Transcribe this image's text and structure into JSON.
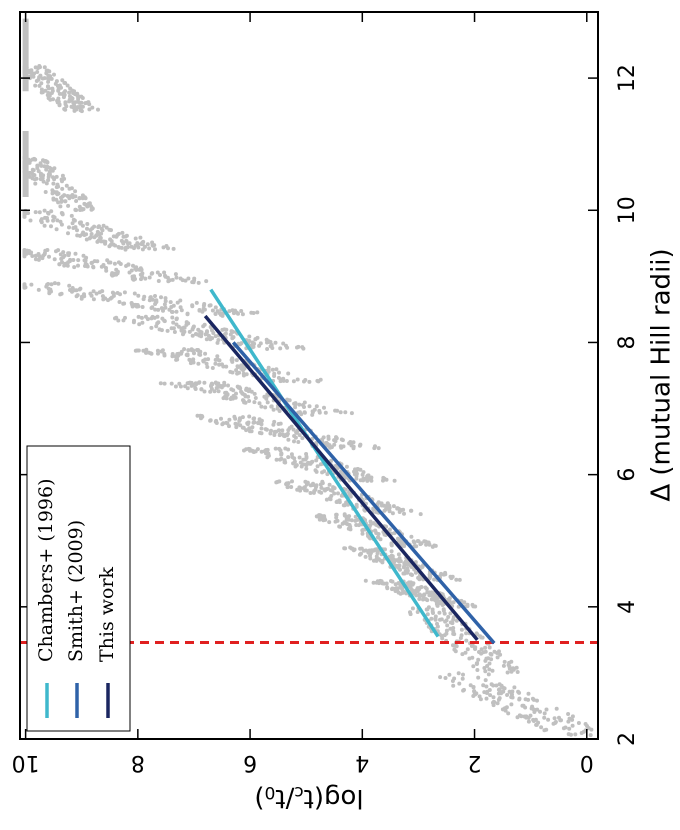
{
  "chart_data": {
    "type": "scatter",
    "orientation": "rotated-90-clockwise",
    "xlabel": "Δ (mutual Hill radii)",
    "ylabel_parts": {
      "prefix": "log(t",
      "sub1": "c",
      "mid": "/t",
      "sub2": "0",
      "suffix": ")"
    },
    "xlim": [
      2,
      13
    ],
    "ylim": [
      -0.2,
      10.1
    ],
    "xticks": [
      2,
      4,
      6,
      8,
      10,
      12
    ],
    "xtick_labels": [
      "2",
      "4",
      "6",
      "8",
      "10",
      "12"
    ],
    "yticks": [
      0,
      2,
      4,
      6,
      8,
      10
    ],
    "ytick_labels": [
      "0",
      "2",
      "4",
      "6",
      "8",
      "10"
    ],
    "point_color": "#c0c0c0",
    "scatter_segments": [
      {
        "x0": 2.05,
        "x1": 3.0,
        "y0": 0.1,
        "y1": 2.3
      },
      {
        "x0": 3.0,
        "x1": 4.0,
        "y0": 1.5,
        "y1": 2.9
      },
      {
        "x0": 4.0,
        "x1": 4.4,
        "y0": 2.3,
        "y1": 3.6
      },
      {
        "x0": 4.4,
        "x1": 4.9,
        "y0": 2.6,
        "y1": 4.0
      },
      {
        "x0": 4.9,
        "x1": 5.4,
        "y0": 3.0,
        "y1": 4.6
      },
      {
        "x0": 5.4,
        "x1": 5.9,
        "y0": 3.4,
        "y1": 5.2
      },
      {
        "x0": 5.9,
        "x1": 6.4,
        "y0": 3.8,
        "y1": 5.8
      },
      {
        "x0": 6.4,
        "x1": 6.9,
        "y0": 4.2,
        "y1": 6.6
      },
      {
        "x0": 6.9,
        "x1": 7.4,
        "y0": 4.6,
        "y1": 7.1
      },
      {
        "x0": 7.4,
        "x1": 7.9,
        "y0": 5.0,
        "y1": 7.6
      },
      {
        "x0": 7.9,
        "x1": 8.4,
        "y0": 5.5,
        "y1": 8.1
      },
      {
        "x0": 8.4,
        "x1": 8.9,
        "y0": 6.2,
        "y1": 10.0
      },
      {
        "x0": 8.9,
        "x1": 9.4,
        "y0": 7.2,
        "y1": 10.0
      },
      {
        "x0": 9.4,
        "x1": 10.0,
        "y0": 7.8,
        "y1": 10.0
      },
      {
        "x0": 10.0,
        "x1": 10.8,
        "y0": 9.0,
        "y1": 10.0
      },
      {
        "x0": 11.5,
        "x1": 12.2,
        "y0": 9.0,
        "y1": 10.0
      }
    ],
    "scatter_bands": [
      {
        "x0": 10.2,
        "x1": 11.2,
        "y": 10.0
      },
      {
        "x0": 11.8,
        "x1": 12.9,
        "y": 10.0
      }
    ],
    "fit_lines": [
      {
        "name": "Chambers+ (1996)",
        "color": "#3fb8cc",
        "x": [
          3.55,
          8.8
        ],
        "y": [
          2.65,
          6.7
        ]
      },
      {
        "name": "Smith+ (2009)",
        "color": "#2f62a8",
        "x": [
          3.45,
          8.0
        ],
        "y": [
          1.65,
          6.3
        ]
      },
      {
        "name": "This work",
        "color": "#1a2660",
        "x": [
          3.5,
          8.4
        ],
        "y": [
          1.95,
          6.8
        ]
      }
    ],
    "threshold_line": {
      "x": 3.46,
      "color": "#e02020",
      "style": "dashed"
    },
    "legend": {
      "placement": "bottom-left",
      "entries": [
        "Chambers+ (1996)",
        "Smith+ (2009)",
        "This work"
      ]
    }
  }
}
